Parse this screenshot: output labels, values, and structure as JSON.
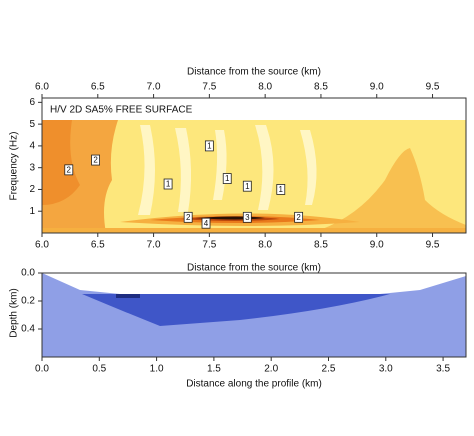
{
  "chart_data": [
    {
      "type": "contour",
      "title": "H/V 2D SA5% FREE SURFACE",
      "xlabel_top": "Distance from the source (km)",
      "xlabel": "Distance from the source (km)",
      "ylabel": "Frequency (Hz)",
      "xlim": [
        6.0,
        9.8
      ],
      "xticks": [
        {
          "value": 6.0,
          "label": "6.0"
        },
        {
          "value": 6.5,
          "label": "6.5"
        },
        {
          "value": 7.0,
          "label": "7.0"
        },
        {
          "value": 7.5,
          "label": "7.5"
        },
        {
          "value": 8.0,
          "label": "8.0"
        },
        {
          "value": 8.5,
          "label": "8.5"
        },
        {
          "value": 9.0,
          "label": "9.0"
        },
        {
          "value": 9.5,
          "label": "9.5"
        }
      ],
      "ylim": [
        0,
        6.2
      ],
      "yticks": [
        1,
        2,
        3,
        4,
        5,
        6
      ],
      "contour_labels": [
        {
          "level": 2,
          "x": 6.48,
          "y": 3.35
        },
        {
          "level": 2,
          "x": 6.24,
          "y": 2.9
        },
        {
          "level": 1,
          "x": 7.5,
          "y": 4.0
        },
        {
          "level": 1,
          "x": 7.13,
          "y": 2.25
        },
        {
          "level": 1,
          "x": 7.66,
          "y": 2.5
        },
        {
          "level": 1,
          "x": 7.84,
          "y": 2.15
        },
        {
          "level": 1,
          "x": 8.14,
          "y": 2.0
        },
        {
          "level": 2,
          "x": 7.31,
          "y": 0.72
        },
        {
          "level": 4,
          "x": 7.47,
          "y": 0.45
        },
        {
          "level": 3,
          "x": 7.84,
          "y": 0.72
        },
        {
          "level": 2,
          "x": 8.3,
          "y": 0.72
        }
      ]
    },
    {
      "type": "cross-section",
      "xlabel": "Distance along the profile (km)",
      "ylabel": "Depth (km)",
      "xlim": [
        0,
        3.7
      ],
      "xticks": [
        {
          "value": 0,
          "label": "0.0"
        },
        {
          "value": 0.5,
          "label": "0.5"
        },
        {
          "value": 1,
          "label": "1.0"
        },
        {
          "value": 1.5,
          "label": "1.5"
        },
        {
          "value": 2,
          "label": "2.0"
        },
        {
          "value": 2.5,
          "label": "2.5"
        },
        {
          "value": 3,
          "label": "3.0"
        },
        {
          "value": 3.5,
          "label": "3.5"
        }
      ],
      "ylim": [
        0,
        0.6
      ],
      "yticks": [
        {
          "value": 0,
          "label": "0.0"
        },
        {
          "value": 0.2,
          "label": "0.2"
        },
        {
          "value": 0.4,
          "label": "0.4"
        }
      ]
    }
  ]
}
